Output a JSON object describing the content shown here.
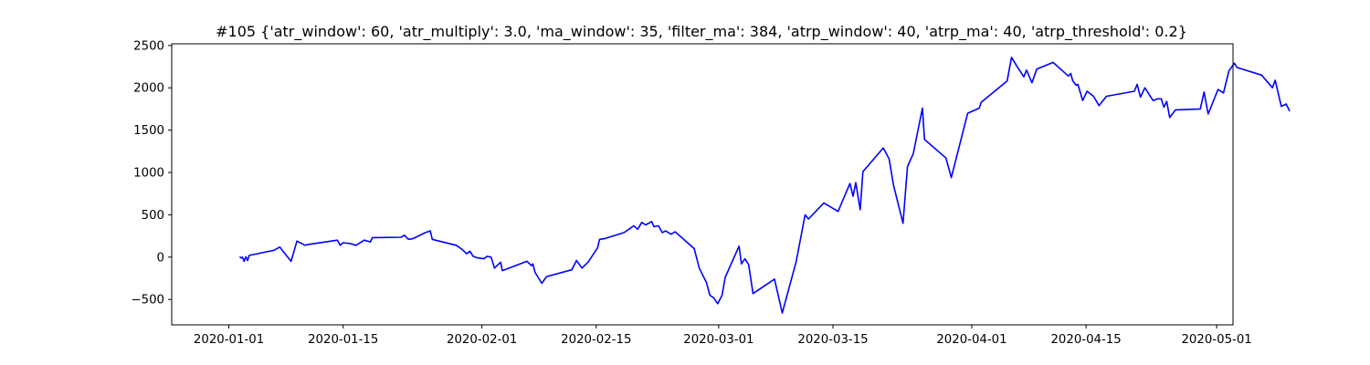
{
  "chart_data": {
    "type": "line",
    "title": "#105 {'atr_window': 60, 'atr_multiply': 3.0, 'ma_window': 35, 'filter_ma': 384, 'atrp_window': 40, 'atrp_ma': 40, 'atrp_threshold': 0.2}",
    "xlabel": "",
    "ylabel": "",
    "x_type": "date",
    "xlim": [
      "2019-12-25",
      "2020-05-03"
    ],
    "ylim": [
      -800,
      2520
    ],
    "grid": false,
    "x_ticks": [
      {
        "value": "2020-01-01",
        "label": "2020-01-01"
      },
      {
        "value": "2020-01-15",
        "label": "2020-01-15"
      },
      {
        "value": "2020-02-01",
        "label": "2020-02-01"
      },
      {
        "value": "2020-02-15",
        "label": "2020-02-15"
      },
      {
        "value": "2020-03-01",
        "label": "2020-03-01"
      },
      {
        "value": "2020-03-15",
        "label": "2020-03-15"
      },
      {
        "value": "2020-04-01",
        "label": "2020-04-01"
      },
      {
        "value": "2020-04-15",
        "label": "2020-04-15"
      },
      {
        "value": "2020-05-01",
        "label": "2020-05-01"
      }
    ],
    "y_ticks": [
      {
        "value": -500,
        "label": "−500"
      },
      {
        "value": 0,
        "label": "0"
      },
      {
        "value": 500,
        "label": "500"
      },
      {
        "value": 1000,
        "label": "1000"
      },
      {
        "value": 1500,
        "label": "1500"
      },
      {
        "value": 2000,
        "label": "2000"
      },
      {
        "value": 2500,
        "label": "2500"
      }
    ],
    "series": [
      {
        "color": "#0000ff",
        "points": [
          [
            "2020-01-02T09:00",
            0
          ],
          [
            "2020-01-02T12:00",
            -10
          ],
          [
            "2020-01-02T16:00",
            0
          ],
          [
            "2020-01-02T21:00",
            -50
          ],
          [
            "2020-01-03T02:00",
            5
          ],
          [
            "2020-01-03T07:00",
            -40
          ],
          [
            "2020-01-03T12:00",
            20
          ],
          [
            "2020-01-06T12:00",
            80
          ],
          [
            "2020-01-07T06:00",
            120
          ],
          [
            "2020-01-07T15:00",
            70
          ],
          [
            "2020-01-08T15:00",
            -50
          ],
          [
            "2020-01-09T08:00",
            190
          ],
          [
            "2020-01-10T08:00",
            140
          ],
          [
            "2020-01-10T17:00",
            150
          ],
          [
            "2020-01-14T07:00",
            200
          ],
          [
            "2020-01-14T15:00",
            140
          ],
          [
            "2020-01-15T00:00",
            170
          ],
          [
            "2020-01-15T20:00",
            160
          ],
          [
            "2020-01-16T14:00",
            140
          ],
          [
            "2020-01-17T14:00",
            200
          ],
          [
            "2020-01-18T08:00",
            180
          ],
          [
            "2020-01-18T14:00",
            230
          ],
          [
            "2020-01-22T03:00",
            235
          ],
          [
            "2020-01-22T12:00",
            260
          ],
          [
            "2020-01-23T00:00",
            210
          ],
          [
            "2020-01-23T14:00",
            220
          ],
          [
            "2020-01-25T02:00",
            290
          ],
          [
            "2020-01-25T16:00",
            310
          ],
          [
            "2020-01-25T22:00",
            210
          ],
          [
            "2020-01-28T20:00",
            140
          ],
          [
            "2020-01-29T14:00",
            90
          ],
          [
            "2020-01-30T03:00",
            40
          ],
          [
            "2020-01-30T13:00",
            70
          ],
          [
            "2020-01-30T22:00",
            10
          ],
          [
            "2020-01-31T12:00",
            -10
          ],
          [
            "2020-02-01T06:00",
            -20
          ],
          [
            "2020-02-01T15:00",
            10
          ],
          [
            "2020-02-02T03:00",
            0
          ],
          [
            "2020-02-02T13:00",
            -130
          ],
          [
            "2020-02-03T07:00",
            -60
          ],
          [
            "2020-02-03T12:00",
            -160
          ],
          [
            "2020-02-06T12:00",
            -50
          ],
          [
            "2020-02-07T02:00",
            -100
          ],
          [
            "2020-02-07T06:00",
            -80
          ],
          [
            "2020-02-07T12:00",
            -180
          ],
          [
            "2020-02-08T08:00",
            -310
          ],
          [
            "2020-02-08T22:00",
            -230
          ],
          [
            "2020-02-12T00:00",
            -150
          ],
          [
            "2020-02-12T14:00",
            -40
          ],
          [
            "2020-02-13T06:00",
            -130
          ],
          [
            "2020-02-14T00:00",
            -60
          ],
          [
            "2020-02-15T04:00",
            110
          ],
          [
            "2020-02-15T10:00",
            210
          ],
          [
            "2020-02-16T02:00",
            220
          ],
          [
            "2020-02-18T10:00",
            290
          ],
          [
            "2020-02-19T14:00",
            370
          ],
          [
            "2020-02-20T02:00",
            330
          ],
          [
            "2020-02-20T14:00",
            410
          ],
          [
            "2020-02-21T01:00",
            380
          ],
          [
            "2020-02-21T19:00",
            420
          ],
          [
            "2020-02-22T02:00",
            360
          ],
          [
            "2020-02-22T15:00",
            370
          ],
          [
            "2020-02-23T02:00",
            290
          ],
          [
            "2020-02-23T12:00",
            310
          ],
          [
            "2020-02-24T04:00",
            270
          ],
          [
            "2020-02-24T16:00",
            300
          ],
          [
            "2020-02-27T00:00",
            100
          ],
          [
            "2020-02-27T15:00",
            -130
          ],
          [
            "2020-02-28T12:00",
            -300
          ],
          [
            "2020-02-28T22:00",
            -450
          ],
          [
            "2020-02-29T09:00",
            -480
          ],
          [
            "2020-02-29T21:00",
            -550
          ],
          [
            "2020-03-01T10:00",
            -450
          ],
          [
            "2020-03-01T19:00",
            -240
          ],
          [
            "2020-03-03T12:00",
            130
          ],
          [
            "2020-03-03T19:00",
            -80
          ],
          [
            "2020-03-04T05:00",
            -20
          ],
          [
            "2020-03-04T16:00",
            -90
          ],
          [
            "2020-03-05T05:00",
            -430
          ],
          [
            "2020-03-07T20:00",
            -260
          ],
          [
            "2020-03-08T19:00",
            -660
          ],
          [
            "2020-03-10T12:00",
            -50
          ],
          [
            "2020-03-11T14:00",
            500
          ],
          [
            "2020-03-12T00:00",
            450
          ],
          [
            "2020-03-13T21:00",
            640
          ],
          [
            "2020-03-15T15:00",
            540
          ],
          [
            "2020-03-17T02:00",
            870
          ],
          [
            "2020-03-17T11:00",
            720
          ],
          [
            "2020-03-17T19:00",
            880
          ],
          [
            "2020-03-18T08:00",
            560
          ],
          [
            "2020-03-18T16:00",
            1010
          ],
          [
            "2020-03-21T04:00",
            1290
          ],
          [
            "2020-03-21T21:00",
            1160
          ],
          [
            "2020-03-22T10:00",
            850
          ],
          [
            "2020-03-23T14:00",
            400
          ],
          [
            "2020-03-24T03:00",
            1070
          ],
          [
            "2020-03-24T20:00",
            1220
          ],
          [
            "2020-03-25T13:00",
            1560
          ],
          [
            "2020-03-25T23:00",
            1760
          ],
          [
            "2020-03-26T05:00",
            1390
          ],
          [
            "2020-03-28T20:00",
            1170
          ],
          [
            "2020-03-29T12:00",
            940
          ],
          [
            "2020-03-31T12:00",
            1700
          ],
          [
            "2020-04-01T22:00",
            1760
          ],
          [
            "2020-04-02T04:00",
            1830
          ],
          [
            "2020-04-05T08:00",
            2080
          ],
          [
            "2020-04-05T21:00",
            2360
          ],
          [
            "2020-04-06T12:00",
            2260
          ],
          [
            "2020-04-07T09:00",
            2130
          ],
          [
            "2020-04-07T17:00",
            2210
          ],
          [
            "2020-04-08T09:00",
            2060
          ],
          [
            "2020-04-08T23:00",
            2220
          ],
          [
            "2020-04-10T23:00",
            2300
          ],
          [
            "2020-04-12T20:00",
            2140
          ],
          [
            "2020-04-13T03:00",
            2170
          ],
          [
            "2020-04-13T09:00",
            2080
          ],
          [
            "2020-04-13T19:00",
            2030
          ],
          [
            "2020-04-14T00:00",
            2040
          ],
          [
            "2020-04-14T14:00",
            1850
          ],
          [
            "2020-04-15T03:00",
            1960
          ],
          [
            "2020-04-15T22:00",
            1900
          ],
          [
            "2020-04-16T14:00",
            1790
          ],
          [
            "2020-04-17T12:00",
            1900
          ],
          [
            "2020-04-20T22:00",
            1960
          ],
          [
            "2020-04-21T06:00",
            2040
          ],
          [
            "2020-04-21T16:00",
            1890
          ],
          [
            "2020-04-22T05:00",
            2000
          ],
          [
            "2020-04-23T05:00",
            1850
          ],
          [
            "2020-04-23T19:00",
            1870
          ],
          [
            "2020-04-24T05:00",
            1870
          ],
          [
            "2020-04-24T13:00",
            1770
          ],
          [
            "2020-04-24T21:00",
            1840
          ],
          [
            "2020-04-25T06:00",
            1650
          ],
          [
            "2020-04-25T23:00",
            1740
          ],
          [
            "2020-04-29T00:00",
            1750
          ],
          [
            "2020-04-29T11:00",
            1950
          ],
          [
            "2020-04-29T23:00",
            1690
          ],
          [
            "2020-05-01T04:00",
            1980
          ],
          [
            "2020-05-01T20:00",
            1940
          ],
          [
            "2020-05-02T12:00",
            2200
          ],
          [
            "2020-05-03T04:00",
            2290
          ],
          [
            "2020-05-03T12:00",
            2240
          ],
          [
            "2020-05-06T12:00",
            2150
          ],
          [
            "2020-05-07T20:00",
            2000
          ],
          [
            "2020-05-08T04:00",
            2090
          ],
          [
            "2020-05-08T22:00",
            1780
          ],
          [
            "2020-05-09T12:00",
            1810
          ],
          [
            "2020-05-09T22:00",
            1730
          ]
        ]
      }
    ]
  }
}
